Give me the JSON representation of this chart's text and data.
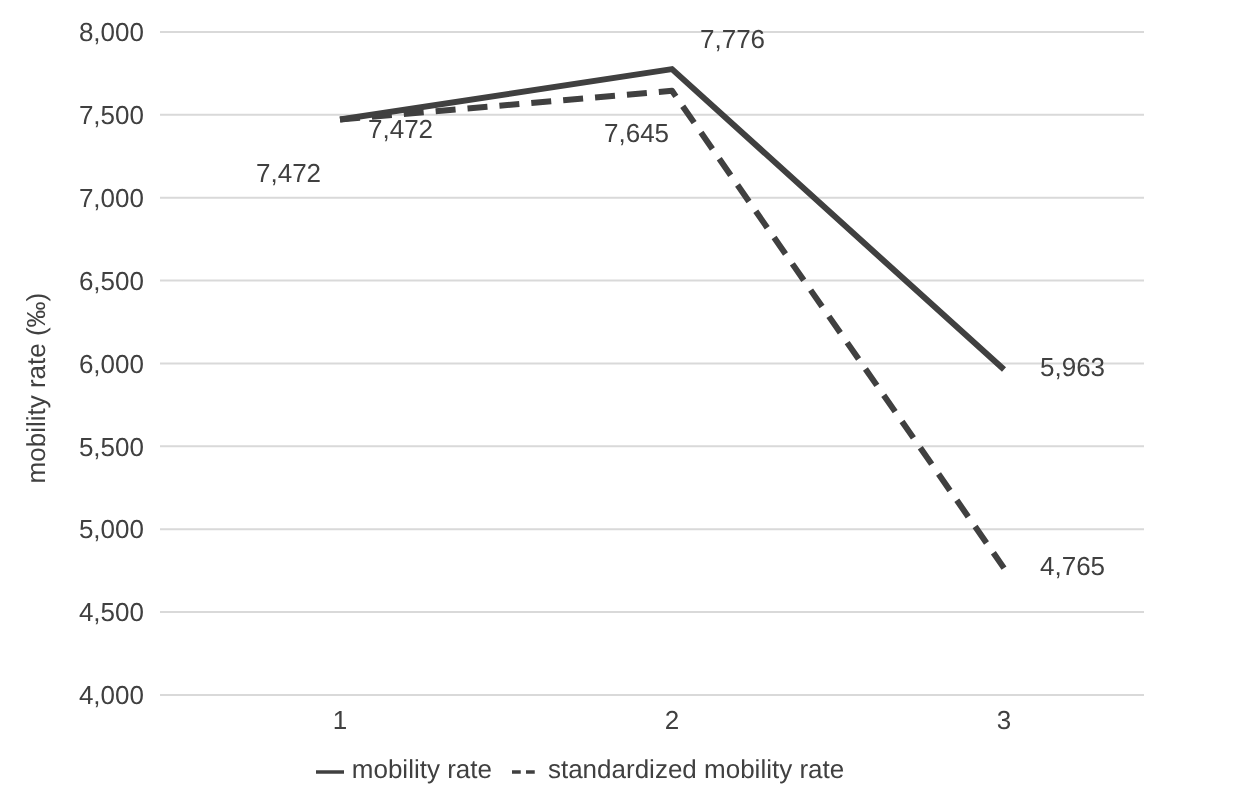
{
  "chart_data": {
    "type": "line",
    "ylabel": "mobility rate (‰)",
    "categories": [
      "1",
      "2",
      "3"
    ],
    "series": [
      {
        "name": "mobility rate",
        "color": "#404040",
        "line_style": "solid",
        "values": [
          7472,
          7776,
          5963
        ],
        "value_labels": [
          "7,472",
          "7,776",
          "5,963"
        ]
      },
      {
        "name": "standardized mobility rate",
        "color": "#404040",
        "line_style": "dashed",
        "values": [
          7472,
          7645,
          4765
        ],
        "value_labels": [
          "7,472",
          "7,645",
          "4,765"
        ]
      }
    ],
    "ylim": [
      4000,
      8000
    ],
    "yticks": [
      {
        "value": 4000,
        "label": "4,000"
      },
      {
        "value": 4500,
        "label": "4,500"
      },
      {
        "value": 5000,
        "label": "5,000"
      },
      {
        "value": 5500,
        "label": "5,500"
      },
      {
        "value": 6000,
        "label": "6,000"
      },
      {
        "value": 6500,
        "label": "6,500"
      },
      {
        "value": 7000,
        "label": "7,000"
      },
      {
        "value": 7500,
        "label": "7,500"
      },
      {
        "value": 8000,
        "label": "8,000"
      }
    ],
    "grid": "y",
    "legend": "bottom",
    "marker": "none"
  }
}
